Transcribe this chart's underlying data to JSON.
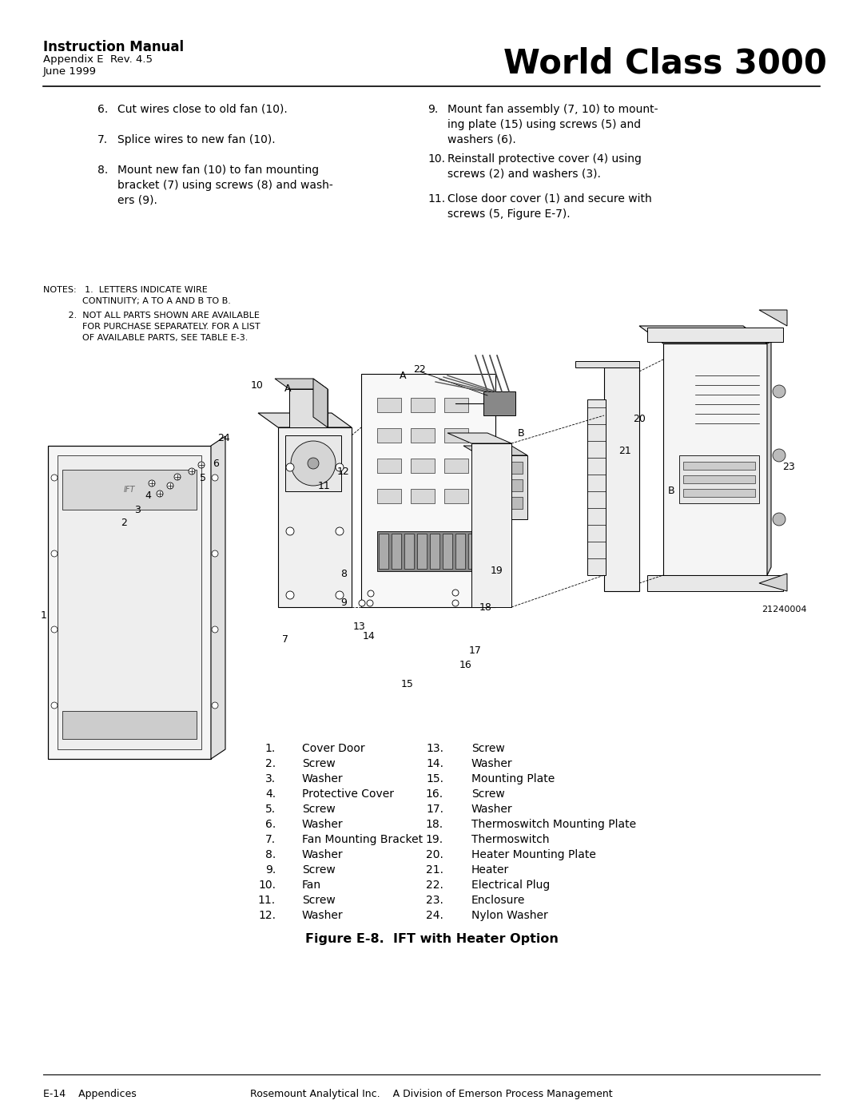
{
  "page_width": 10.8,
  "page_height": 13.97,
  "bg_color": "#ffffff",
  "header": {
    "manual_title": "Instruction Manual",
    "subtitle1": "Appendix E  Rev. 4.5",
    "subtitle2": "June 1999",
    "brand": "World Class 3000"
  },
  "parts_left": [
    [
      "1.",
      "Cover Door"
    ],
    [
      "2.",
      "Screw"
    ],
    [
      "3.",
      "Washer"
    ],
    [
      "4.",
      "Protective Cover"
    ],
    [
      "5.",
      "Screw"
    ],
    [
      "6.",
      "Washer"
    ],
    [
      "7.",
      "Fan Mounting Bracket"
    ],
    [
      "8.",
      "Washer"
    ],
    [
      "9.",
      "Screw"
    ],
    [
      "10.",
      "Fan"
    ],
    [
      "11.",
      "Screw"
    ],
    [
      "12.",
      "Washer"
    ]
  ],
  "parts_right": [
    [
      "13.",
      "Screw"
    ],
    [
      "14.",
      "Washer"
    ],
    [
      "15.",
      "Mounting Plate"
    ],
    [
      "16.",
      "Screw"
    ],
    [
      "17.",
      "Washer"
    ],
    [
      "18.",
      "Thermoswitch Mounting Plate"
    ],
    [
      "19.",
      "Thermoswitch"
    ],
    [
      "20.",
      "Heater Mounting Plate"
    ],
    [
      "21.",
      "Heater"
    ],
    [
      "22.",
      "Electrical Plug"
    ],
    [
      "23.",
      "Enclosure"
    ],
    [
      "24.",
      "Nylon Washer"
    ]
  ],
  "figure_caption": "Figure E-8.  IFT with Heater Option",
  "footer_left": "E-14    Appendices",
  "footer_right": "Rosemount Analytical Inc.    A Division of Emerson Process Management",
  "diagram_image_id": "21240004",
  "notes_line1": "NOTES:   1.  LETTERS INDICATE WIRE",
  "notes_line2": "              CONTINUITY; A TO A AND B TO B.",
  "notes_line3": "         2.  NOT ALL PARTS SHOWN ARE AVAILABLE",
  "notes_line4": "              FOR PURCHASE SEPARATELY. FOR A LIST",
  "notes_line5": "              OF AVAILABLE PARTS, SEE TABLE E-3."
}
